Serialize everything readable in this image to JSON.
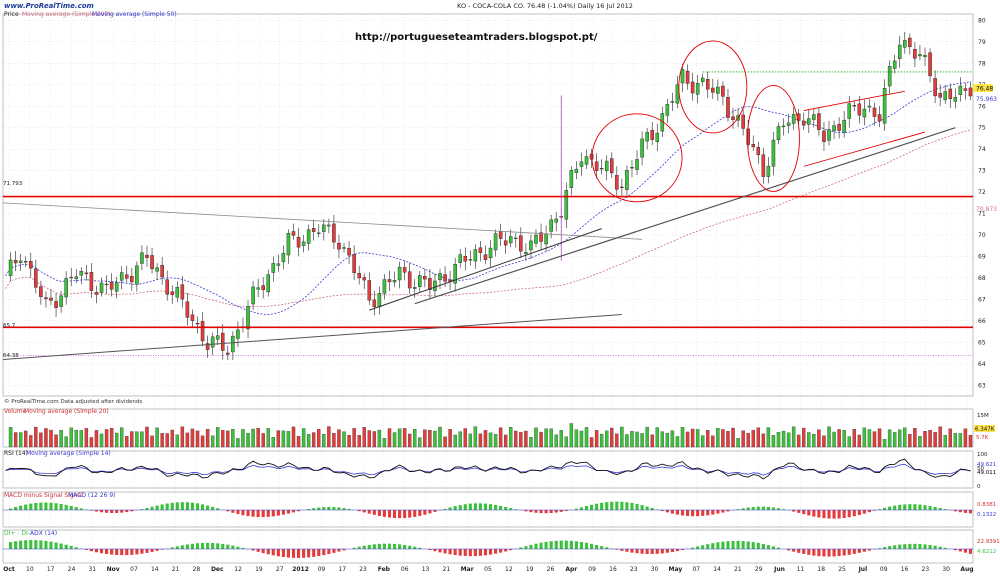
{
  "header": {
    "logo": "www.ProRealTime.com",
    "title": "KO - COCA-COLA CO.   76.48 (-1.04%)   Daily  16 Jul 2012",
    "watermark_url": "http://portugueseteamtraders.blogspot.pt/"
  },
  "panels": {
    "price": {
      "label_price": "Price",
      "label_ma200": "Moving average (Simple 200)",
      "label_ma50": "Moving average (Simple 50)",
      "footer": "© ProRealTime.com   Data adjusted after dividends"
    },
    "volume": {
      "label_main": "Volume",
      "label_ma": "Moving average (Simple 20)"
    },
    "rsi": {
      "label_main": "RSI (14)",
      "label_ma": "Moving average (Simple 14)"
    },
    "macd": {
      "label_main": "MACD minus Signal Signal",
      "label_ma": "MACD (12 26 9)"
    },
    "dmi": {
      "label_main": "DI+ - DI-",
      "label_ma": "ADX (14)"
    }
  },
  "colors": {
    "up": "#3cc13c",
    "down": "#e23c3c",
    "ma50": "#3a3ad6",
    "ma200": "#d07080",
    "support": "#e00000",
    "trend": "#555555",
    "marker": "#b040c0",
    "resistance": "#20a020"
  },
  "chart_data": [
    {
      "type": "candlestick",
      "name": "price",
      "x_axis_labels": [
        "Oct",
        "10",
        "17",
        "24",
        "31",
        "Nov",
        "07",
        "14",
        "21",
        "28",
        "Dec",
        "12",
        "19",
        "27",
        "2012",
        "09",
        "17",
        "23",
        "Feb",
        "06",
        "13",
        "21",
        "Mar",
        "05",
        "12",
        "19",
        "26",
        "Apr",
        "09",
        "16",
        "23",
        "30",
        "May",
        "07",
        "14",
        "21",
        "29",
        "Jun",
        "11",
        "18",
        "25",
        "Jul",
        "09",
        "16",
        "23",
        "30",
        "Aug"
      ],
      "ylim": [
        62.5,
        80.3
      ],
      "y_ticks": [
        63,
        64,
        65,
        66,
        67,
        68,
        69,
        70,
        71,
        72,
        73,
        74,
        75,
        76,
        77,
        78,
        79,
        80
      ],
      "last_price": 76.48,
      "ma50_last": 75.963,
      "ma200_last": 70.873,
      "levels": {
        "support_upper": 71.793,
        "support_lower": 65.7,
        "low_marker": 64.38
      },
      "x_labels_printed": [
        "71.793",
        "65.7",
        "64.38"
      ],
      "anchors": [
        [
          0,
          67.9
        ],
        [
          3,
          69.3
        ],
        [
          8,
          66.6
        ],
        [
          14,
          68.2
        ],
        [
          20,
          67.4
        ],
        [
          28,
          68.9
        ],
        [
          34,
          67.1
        ],
        [
          40,
          65.0
        ],
        [
          44,
          64.7
        ],
        [
          50,
          67.5
        ],
        [
          56,
          69.6
        ],
        [
          62,
          70.3
        ],
        [
          66,
          69.8
        ],
        [
          72,
          67.0
        ],
        [
          78,
          68.2
        ],
        [
          84,
          67.6
        ],
        [
          92,
          69.0
        ],
        [
          100,
          69.9
        ],
        [
          104,
          69.3
        ],
        [
          110,
          71.2
        ],
        [
          114,
          73.8
        ],
        [
          118,
          73.1
        ],
        [
          122,
          72.4
        ],
        [
          126,
          74.1
        ],
        [
          130,
          75.5
        ],
        [
          134,
          77.3
        ],
        [
          138,
          77.0
        ],
        [
          142,
          76.4
        ],
        [
          146,
          74.8
        ],
        [
          150,
          73.1
        ],
        [
          154,
          75.2
        ],
        [
          158,
          75.6
        ],
        [
          162,
          74.6
        ],
        [
          166,
          75.5
        ],
        [
          170,
          76.0
        ],
        [
          173,
          75.6
        ],
        [
          177,
          79.2
        ],
        [
          181,
          78.3
        ],
        [
          185,
          76.5
        ]
      ]
    },
    {
      "type": "bar",
      "name": "volume",
      "y_tick_labels": [
        "15M",
        "6.347K",
        "5.7K"
      ]
    },
    {
      "type": "line",
      "name": "rsi",
      "y_tick_labels": [
        "100",
        "50",
        "0"
      ],
      "values_printed": [
        "49.621",
        "49.011"
      ]
    },
    {
      "type": "bar",
      "name": "macd",
      "values_printed": [
        "0.8381",
        "0.1322"
      ]
    },
    {
      "type": "bar",
      "name": "dmi",
      "values_printed": [
        "22.9391",
        "4.6212"
      ]
    }
  ]
}
